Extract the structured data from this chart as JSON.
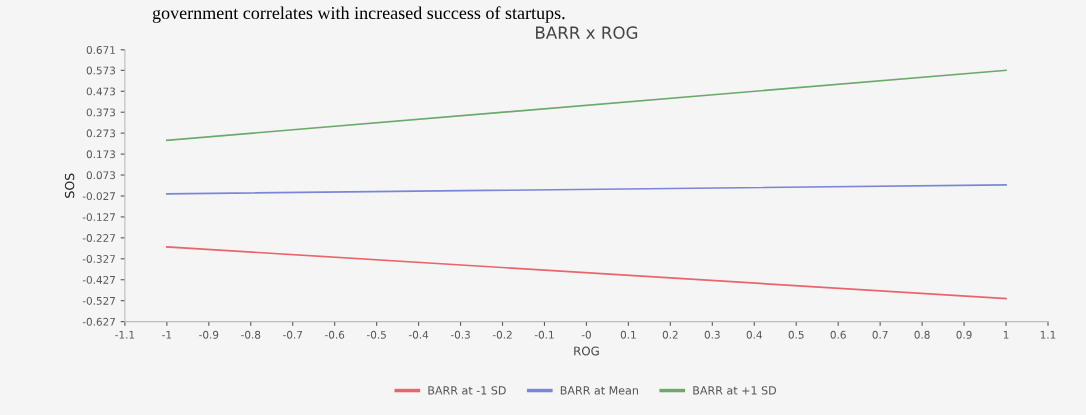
{
  "chart_data": {
    "type": "line",
    "title": "BARR x ROG",
    "xlabel": "ROG",
    "ylabel": "SOS",
    "annotations": [
      "government correlates with increased success of startups."
    ],
    "x": [
      -1,
      1
    ],
    "series": [
      {
        "name": "BARR at -1 SD",
        "color": "#e8666b",
        "values": [
          -0.27,
          -0.517
        ]
      },
      {
        "name": "BARR at Mean",
        "color": "#7b86d8",
        "values": [
          -0.017,
          0.026
        ]
      },
      {
        "name": "BARR at +1 SD",
        "color": "#6aaa6a",
        "values": [
          0.239,
          0.573
        ]
      }
    ],
    "xlim": [
      -1.1,
      1.1
    ],
    "xticks": [
      -1.1,
      -1,
      -0.9,
      -0.8,
      -0.7,
      -0.6,
      -0.5,
      -0.4,
      -0.3,
      -0.2,
      -0.1,
      {
        "value": 0,
        "label": "-0"
      },
      0.1,
      0.2,
      0.3,
      0.4,
      0.5,
      0.6,
      0.7,
      0.8,
      0.9,
      1,
      1.1
    ],
    "ylim": [
      -0.627,
      0.671
    ],
    "yticks": [
      -0.627,
      -0.527,
      -0.427,
      -0.327,
      -0.227,
      -0.127,
      -0.027,
      0.073,
      0.173,
      0.273,
      0.373,
      0.473,
      0.573,
      0.671
    ],
    "legend": "bottom",
    "grid": false,
    "marker": "none",
    "line_style": "solid"
  }
}
